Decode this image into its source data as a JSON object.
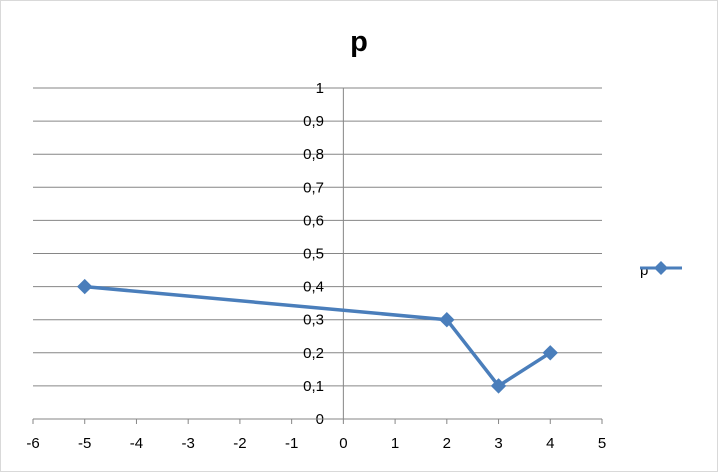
{
  "chart_data": {
    "type": "line",
    "title": "p",
    "xlabel": "",
    "ylabel": "",
    "xlim": [
      -6,
      5
    ],
    "ylim": [
      0,
      1
    ],
    "xticks": [
      "-6",
      "-5",
      "-4",
      "-3",
      "-2",
      "-1",
      "0",
      "1",
      "2",
      "3",
      "4",
      "5"
    ],
    "yticks": [
      "0",
      "0,1",
      "0,2",
      "0,3",
      "0,4",
      "0,5",
      "0,6",
      "0,7",
      "0,8",
      "0,9",
      "1"
    ],
    "grid": true,
    "legend_position": "right",
    "series": [
      {
        "name": "p",
        "color": "#4a7ebb",
        "marker": "diamond",
        "x": [
          -5,
          2,
          3,
          4
        ],
        "y": [
          0.4,
          0.3,
          0.1,
          0.2
        ]
      }
    ]
  }
}
